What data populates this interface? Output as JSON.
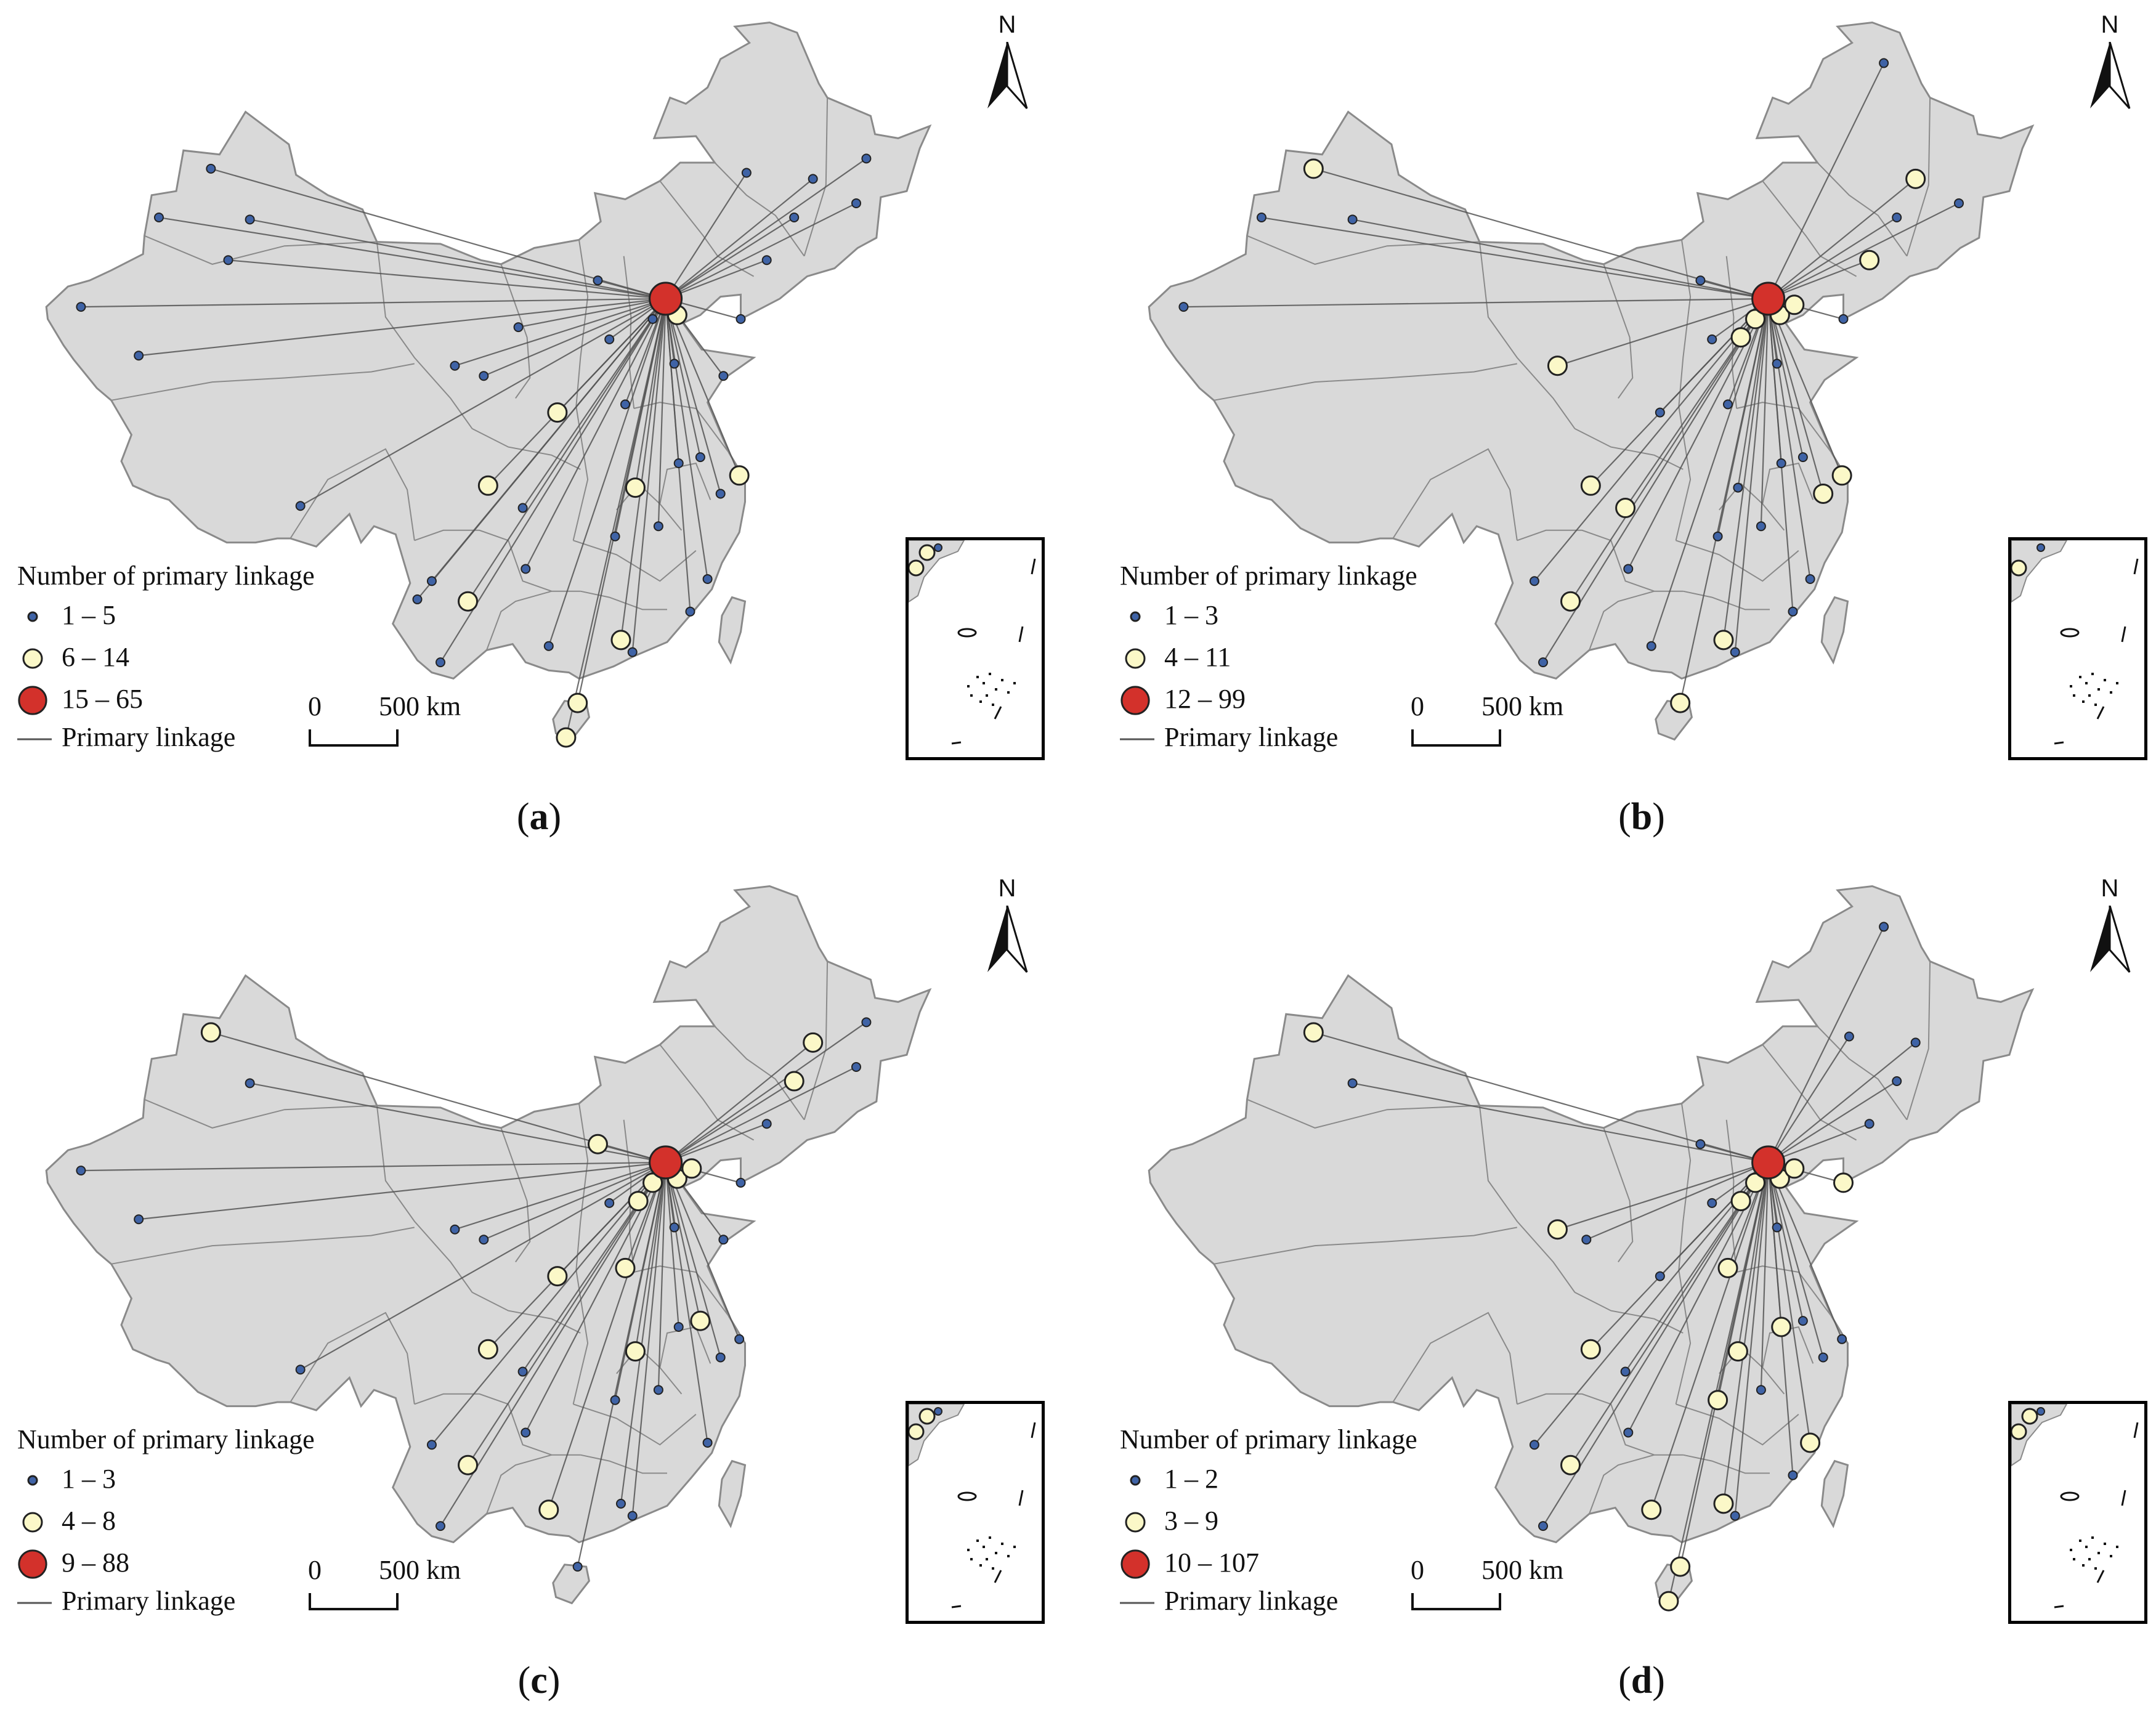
{
  "colors": {
    "land": "#d9d9d9",
    "boundary": "#8a8a8a",
    "linkage": "#555555",
    "small_node": "#3f63a6",
    "medium_node": "#fbf8c8",
    "large_node": "#d3312b",
    "node_outline": "#222222"
  },
  "north_arrow": {
    "letter": "N",
    "icon": "north-arrow-icon"
  },
  "legend_common": {
    "title": "Number of primary linkage",
    "line_label": "Primary linkage"
  },
  "scale": {
    "zero": "0",
    "distance": "500 km"
  },
  "panels": [
    {
      "id": "a",
      "caption_open": "(",
      "caption_letter": "a",
      "caption_close": ")",
      "classes": [
        "1 – 5",
        "6 – 14",
        "15 – 65"
      ],
      "hub": {
        "lon": 116.4,
        "lat": 39.9,
        "class": "large"
      },
      "nodes": [
        {
          "lon": 116.4,
          "lat": 39.9,
          "class": "large"
        },
        {
          "lon": 117.2,
          "lat": 39.1,
          "class": "medium"
        },
        {
          "lon": 114.3,
          "lat": 30.6,
          "class": "medium"
        },
        {
          "lon": 121.5,
          "lat": 31.2,
          "class": "medium"
        },
        {
          "lon": 104.1,
          "lat": 30.7,
          "class": "medium"
        },
        {
          "lon": 102.7,
          "lat": 25.0,
          "class": "medium"
        },
        {
          "lon": 113.3,
          "lat": 23.1,
          "class": "medium"
        },
        {
          "lon": 110.3,
          "lat": 20.0,
          "class": "medium"
        },
        {
          "lon": 109.5,
          "lat": 18.3,
          "class": "medium"
        },
        {
          "lon": 108.9,
          "lat": 34.3,
          "class": "medium"
        },
        {
          "lon": 87.6,
          "lat": 43.8,
          "class": "small"
        },
        {
          "lon": 84.9,
          "lat": 46.3,
          "class": "small"
        },
        {
          "lon": 81.3,
          "lat": 43.9,
          "class": "small"
        },
        {
          "lon": 75.9,
          "lat": 39.5,
          "class": "small"
        },
        {
          "lon": 79.9,
          "lat": 37.1,
          "class": "small"
        },
        {
          "lon": 86.1,
          "lat": 41.8,
          "class": "small"
        },
        {
          "lon": 91.1,
          "lat": 29.7,
          "class": "small"
        },
        {
          "lon": 101.8,
          "lat": 36.6,
          "class": "small"
        },
        {
          "lon": 103.8,
          "lat": 36.1,
          "class": "small"
        },
        {
          "lon": 106.2,
          "lat": 38.5,
          "class": "small"
        },
        {
          "lon": 111.7,
          "lat": 40.8,
          "class": "small"
        },
        {
          "lon": 112.5,
          "lat": 37.9,
          "class": "small"
        },
        {
          "lon": 113.6,
          "lat": 34.7,
          "class": "small"
        },
        {
          "lon": 115.5,
          "lat": 38.9,
          "class": "small"
        },
        {
          "lon": 117.0,
          "lat": 36.7,
          "class": "small"
        },
        {
          "lon": 120.4,
          "lat": 36.1,
          "class": "small"
        },
        {
          "lon": 118.8,
          "lat": 32.1,
          "class": "small"
        },
        {
          "lon": 117.3,
          "lat": 31.8,
          "class": "small"
        },
        {
          "lon": 120.2,
          "lat": 30.3,
          "class": "small"
        },
        {
          "lon": 119.3,
          "lat": 26.1,
          "class": "small"
        },
        {
          "lon": 115.9,
          "lat": 28.7,
          "class": "small"
        },
        {
          "lon": 112.9,
          "lat": 28.2,
          "class": "small"
        },
        {
          "lon": 106.7,
          "lat": 26.6,
          "class": "small"
        },
        {
          "lon": 106.5,
          "lat": 29.6,
          "class": "small"
        },
        {
          "lon": 108.3,
          "lat": 22.8,
          "class": "small"
        },
        {
          "lon": 123.4,
          "lat": 41.8,
          "class": "small"
        },
        {
          "lon": 125.3,
          "lat": 43.9,
          "class": "small"
        },
        {
          "lon": 126.6,
          "lat": 45.8,
          "class": "small"
        },
        {
          "lon": 121.6,
          "lat": 38.9,
          "class": "small"
        },
        {
          "lon": 118.1,
          "lat": 24.5,
          "class": "small"
        },
        {
          "lon": 114.1,
          "lat": 22.5,
          "class": "small"
        },
        {
          "lon": 100.2,
          "lat": 26.0,
          "class": "small"
        },
        {
          "lon": 99.2,
          "lat": 25.1,
          "class": "small"
        },
        {
          "lon": 100.8,
          "lat": 22.0,
          "class": "small"
        },
        {
          "lon": 129.6,
          "lat": 44.6,
          "class": "small"
        },
        {
          "lon": 130.3,
          "lat": 46.8,
          "class": "small"
        },
        {
          "lon": 122.0,
          "lat": 46.1,
          "class": "small"
        }
      ]
    },
    {
      "id": "b",
      "caption_open": "(",
      "caption_letter": "b",
      "caption_close": ")",
      "classes": [
        "1 – 3",
        "4 – 11",
        "12 – 99"
      ],
      "hub": {
        "lon": 116.4,
        "lat": 39.9,
        "class": "large"
      },
      "nodes": [
        {
          "lon": 116.4,
          "lat": 39.9,
          "class": "large"
        },
        {
          "lon": 117.2,
          "lat": 39.1,
          "class": "medium"
        },
        {
          "lon": 118.2,
          "lat": 39.6,
          "class": "medium"
        },
        {
          "lon": 115.5,
          "lat": 38.9,
          "class": "medium"
        },
        {
          "lon": 114.5,
          "lat": 38.0,
          "class": "medium"
        },
        {
          "lon": 121.5,
          "lat": 31.2,
          "class": "medium"
        },
        {
          "lon": 120.2,
          "lat": 30.3,
          "class": "medium"
        },
        {
          "lon": 123.4,
          "lat": 41.8,
          "class": "medium"
        },
        {
          "lon": 126.6,
          "lat": 45.8,
          "class": "medium"
        },
        {
          "lon": 101.8,
          "lat": 36.6,
          "class": "medium"
        },
        {
          "lon": 104.1,
          "lat": 30.7,
          "class": "medium"
        },
        {
          "lon": 106.5,
          "lat": 29.6,
          "class": "medium"
        },
        {
          "lon": 102.7,
          "lat": 25.0,
          "class": "medium"
        },
        {
          "lon": 113.3,
          "lat": 23.1,
          "class": "medium"
        },
        {
          "lon": 110.3,
          "lat": 20.0,
          "class": "medium"
        },
        {
          "lon": 84.9,
          "lat": 46.3,
          "class": "medium"
        },
        {
          "lon": 87.6,
          "lat": 43.8,
          "class": "small"
        },
        {
          "lon": 81.3,
          "lat": 43.9,
          "class": "small"
        },
        {
          "lon": 75.9,
          "lat": 39.5,
          "class": "small"
        },
        {
          "lon": 112.5,
          "lat": 37.9,
          "class": "small"
        },
        {
          "lon": 113.6,
          "lat": 34.7,
          "class": "small"
        },
        {
          "lon": 114.3,
          "lat": 30.6,
          "class": "small"
        },
        {
          "lon": 112.9,
          "lat": 28.2,
          "class": "small"
        },
        {
          "lon": 117.0,
          "lat": 36.7,
          "class": "small"
        },
        {
          "lon": 118.8,
          "lat": 32.1,
          "class": "small"
        },
        {
          "lon": 117.3,
          "lat": 31.8,
          "class": "small"
        },
        {
          "lon": 119.3,
          "lat": 26.1,
          "class": "small"
        },
        {
          "lon": 115.9,
          "lat": 28.7,
          "class": "small"
        },
        {
          "lon": 106.7,
          "lat": 26.6,
          "class": "small"
        },
        {
          "lon": 108.3,
          "lat": 22.8,
          "class": "small"
        },
        {
          "lon": 108.9,
          "lat": 34.3,
          "class": "small"
        },
        {
          "lon": 111.7,
          "lat": 40.8,
          "class": "small"
        },
        {
          "lon": 125.3,
          "lat": 43.9,
          "class": "small"
        },
        {
          "lon": 129.6,
          "lat": 44.6,
          "class": "small"
        },
        {
          "lon": 124.4,
          "lat": 51.5,
          "class": "small"
        },
        {
          "lon": 121.6,
          "lat": 38.9,
          "class": "small"
        },
        {
          "lon": 100.2,
          "lat": 26.0,
          "class": "small"
        },
        {
          "lon": 100.8,
          "lat": 22.0,
          "class": "small"
        },
        {
          "lon": 114.1,
          "lat": 22.5,
          "class": "small"
        },
        {
          "lon": 118.1,
          "lat": 24.5,
          "class": "small"
        }
      ]
    },
    {
      "id": "c",
      "caption_open": "(",
      "caption_letter": "c",
      "caption_close": ")",
      "classes": [
        "1 – 3",
        "4 – 8",
        "9 – 88"
      ],
      "hub": {
        "lon": 116.4,
        "lat": 39.9,
        "class": "large"
      },
      "nodes": [
        {
          "lon": 116.4,
          "lat": 39.9,
          "class": "large"
        },
        {
          "lon": 117.2,
          "lat": 39.1,
          "class": "medium"
        },
        {
          "lon": 118.2,
          "lat": 39.6,
          "class": "medium"
        },
        {
          "lon": 115.5,
          "lat": 38.9,
          "class": "medium"
        },
        {
          "lon": 114.5,
          "lat": 38.0,
          "class": "medium"
        },
        {
          "lon": 113.6,
          "lat": 34.7,
          "class": "medium"
        },
        {
          "lon": 114.3,
          "lat": 30.6,
          "class": "medium"
        },
        {
          "lon": 118.8,
          "lat": 32.1,
          "class": "medium"
        },
        {
          "lon": 108.9,
          "lat": 34.3,
          "class": "medium"
        },
        {
          "lon": 104.1,
          "lat": 30.7,
          "class": "medium"
        },
        {
          "lon": 102.7,
          "lat": 25.0,
          "class": "medium"
        },
        {
          "lon": 108.3,
          "lat": 22.8,
          "class": "medium"
        },
        {
          "lon": 126.6,
          "lat": 45.8,
          "class": "medium"
        },
        {
          "lon": 125.3,
          "lat": 43.9,
          "class": "medium"
        },
        {
          "lon": 84.9,
          "lat": 46.3,
          "class": "medium"
        },
        {
          "lon": 111.7,
          "lat": 40.8,
          "class": "medium"
        },
        {
          "lon": 87.6,
          "lat": 43.8,
          "class": "small"
        },
        {
          "lon": 75.9,
          "lat": 39.5,
          "class": "small"
        },
        {
          "lon": 79.9,
          "lat": 37.1,
          "class": "small"
        },
        {
          "lon": 91.1,
          "lat": 29.7,
          "class": "small"
        },
        {
          "lon": 101.8,
          "lat": 36.6,
          "class": "small"
        },
        {
          "lon": 103.8,
          "lat": 36.1,
          "class": "small"
        },
        {
          "lon": 112.5,
          "lat": 37.9,
          "class": "small"
        },
        {
          "lon": 117.0,
          "lat": 36.7,
          "class": "small"
        },
        {
          "lon": 120.4,
          "lat": 36.1,
          "class": "small"
        },
        {
          "lon": 121.5,
          "lat": 31.2,
          "class": "small"
        },
        {
          "lon": 120.2,
          "lat": 30.3,
          "class": "small"
        },
        {
          "lon": 117.3,
          "lat": 31.8,
          "class": "small"
        },
        {
          "lon": 119.3,
          "lat": 26.1,
          "class": "small"
        },
        {
          "lon": 115.9,
          "lat": 28.7,
          "class": "small"
        },
        {
          "lon": 112.9,
          "lat": 28.2,
          "class": "small"
        },
        {
          "lon": 106.7,
          "lat": 26.6,
          "class": "small"
        },
        {
          "lon": 106.5,
          "lat": 29.6,
          "class": "small"
        },
        {
          "lon": 113.3,
          "lat": 23.1,
          "class": "small"
        },
        {
          "lon": 114.1,
          "lat": 22.5,
          "class": "small"
        },
        {
          "lon": 123.4,
          "lat": 41.8,
          "class": "small"
        },
        {
          "lon": 121.6,
          "lat": 38.9,
          "class": "small"
        },
        {
          "lon": 100.2,
          "lat": 26.0,
          "class": "small"
        },
        {
          "lon": 100.8,
          "lat": 22.0,
          "class": "small"
        },
        {
          "lon": 110.3,
          "lat": 20.0,
          "class": "small"
        },
        {
          "lon": 129.6,
          "lat": 44.6,
          "class": "small"
        },
        {
          "lon": 130.3,
          "lat": 46.8,
          "class": "small"
        }
      ]
    },
    {
      "id": "d",
      "caption_open": "(",
      "caption_letter": "d",
      "caption_close": ")",
      "classes": [
        "1 – 2",
        "3 – 9",
        "10 – 107"
      ],
      "hub": {
        "lon": 116.4,
        "lat": 39.9,
        "class": "large"
      },
      "nodes": [
        {
          "lon": 116.4,
          "lat": 39.9,
          "class": "large"
        },
        {
          "lon": 117.2,
          "lat": 39.1,
          "class": "medium"
        },
        {
          "lon": 115.5,
          "lat": 38.9,
          "class": "medium"
        },
        {
          "lon": 114.5,
          "lat": 38.0,
          "class": "medium"
        },
        {
          "lon": 118.2,
          "lat": 39.6,
          "class": "medium"
        },
        {
          "lon": 113.6,
          "lat": 34.7,
          "class": "medium"
        },
        {
          "lon": 117.3,
          "lat": 31.8,
          "class": "medium"
        },
        {
          "lon": 114.3,
          "lat": 30.6,
          "class": "medium"
        },
        {
          "lon": 112.9,
          "lat": 28.2,
          "class": "medium"
        },
        {
          "lon": 121.6,
          "lat": 38.9,
          "class": "medium"
        },
        {
          "lon": 101.8,
          "lat": 36.6,
          "class": "medium"
        },
        {
          "lon": 104.1,
          "lat": 30.7,
          "class": "medium"
        },
        {
          "lon": 102.7,
          "lat": 25.0,
          "class": "medium"
        },
        {
          "lon": 108.3,
          "lat": 22.8,
          "class": "medium"
        },
        {
          "lon": 113.3,
          "lat": 23.1,
          "class": "medium"
        },
        {
          "lon": 110.3,
          "lat": 20.0,
          "class": "medium"
        },
        {
          "lon": 109.5,
          "lat": 18.3,
          "class": "medium"
        },
        {
          "lon": 84.9,
          "lat": 46.3,
          "class": "medium"
        },
        {
          "lon": 119.3,
          "lat": 26.1,
          "class": "medium"
        },
        {
          "lon": 87.6,
          "lat": 43.8,
          "class": "small"
        },
        {
          "lon": 112.5,
          "lat": 37.9,
          "class": "small"
        },
        {
          "lon": 111.7,
          "lat": 40.8,
          "class": "small"
        },
        {
          "lon": 117.0,
          "lat": 36.7,
          "class": "small"
        },
        {
          "lon": 118.8,
          "lat": 32.1,
          "class": "small"
        },
        {
          "lon": 121.5,
          "lat": 31.2,
          "class": "small"
        },
        {
          "lon": 120.2,
          "lat": 30.3,
          "class": "small"
        },
        {
          "lon": 115.9,
          "lat": 28.7,
          "class": "small"
        },
        {
          "lon": 106.7,
          "lat": 26.6,
          "class": "small"
        },
        {
          "lon": 106.5,
          "lat": 29.6,
          "class": "small"
        },
        {
          "lon": 108.9,
          "lat": 34.3,
          "class": "small"
        },
        {
          "lon": 103.8,
          "lat": 36.1,
          "class": "small"
        },
        {
          "lon": 123.4,
          "lat": 41.8,
          "class": "small"
        },
        {
          "lon": 125.3,
          "lat": 43.9,
          "class": "small"
        },
        {
          "lon": 126.6,
          "lat": 45.8,
          "class": "small"
        },
        {
          "lon": 124.4,
          "lat": 51.5,
          "class": "small"
        },
        {
          "lon": 122.0,
          "lat": 46.1,
          "class": "small"
        },
        {
          "lon": 100.2,
          "lat": 26.0,
          "class": "small"
        },
        {
          "lon": 100.8,
          "lat": 22.0,
          "class": "small"
        },
        {
          "lon": 114.1,
          "lat": 22.5,
          "class": "small"
        },
        {
          "lon": 118.1,
          "lat": 24.5,
          "class": "small"
        }
      ]
    }
  ]
}
